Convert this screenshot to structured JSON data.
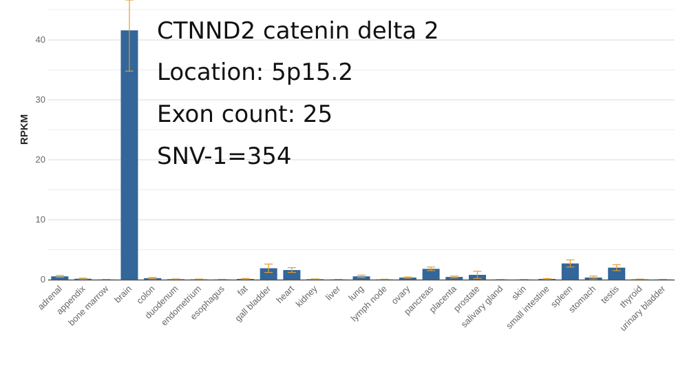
{
  "chart_data": {
    "type": "bar",
    "ylabel": "RPKM",
    "xlabel": "",
    "ylim": [
      0,
      44
    ],
    "yticks": [
      0,
      10,
      20,
      30,
      40
    ],
    "grid": true,
    "colors": {
      "bar": "#336699",
      "error": "#e69a2e",
      "grid": "#d9d9d9",
      "axis": "#555555"
    },
    "categories": [
      "adrenal",
      "appendix",
      "bone marrow",
      "brain",
      "colon",
      "duodenum",
      "endometrium",
      "esophagus",
      "fat",
      "gall bladder",
      "heart",
      "kidney",
      "liver",
      "lung",
      "lymph node",
      "ovary",
      "pancreas",
      "placenta",
      "prostate",
      "salivary gland",
      "skin",
      "small intestine",
      "spleen",
      "stomach",
      "testis",
      "thyroid",
      "urinary bladder"
    ],
    "values": [
      0.55,
      0.15,
      0.02,
      41.6,
      0.25,
      0.08,
      0.06,
      0.03,
      0.12,
      1.9,
      1.6,
      0.08,
      0.03,
      0.55,
      0.04,
      0.35,
      1.8,
      0.45,
      0.8,
      0.02,
      0.02,
      0.12,
      2.7,
      0.35,
      2.0,
      0.06,
      0.03
    ],
    "errors": [
      0.15,
      0.1,
      0.02,
      6.8,
      0.12,
      0.04,
      0.04,
      0.02,
      0.08,
      0.7,
      0.4,
      0.04,
      0.02,
      0.2,
      0.03,
      0.1,
      0.3,
      0.15,
      0.6,
      0.01,
      0.01,
      0.06,
      0.6,
      0.25,
      0.5,
      0.03,
      0.02
    ],
    "annotations": [
      "CTNND2 catenin delta 2",
      "Location: 5p15.2",
      "Exon count: 25",
      "SNV-1=354"
    ]
  }
}
